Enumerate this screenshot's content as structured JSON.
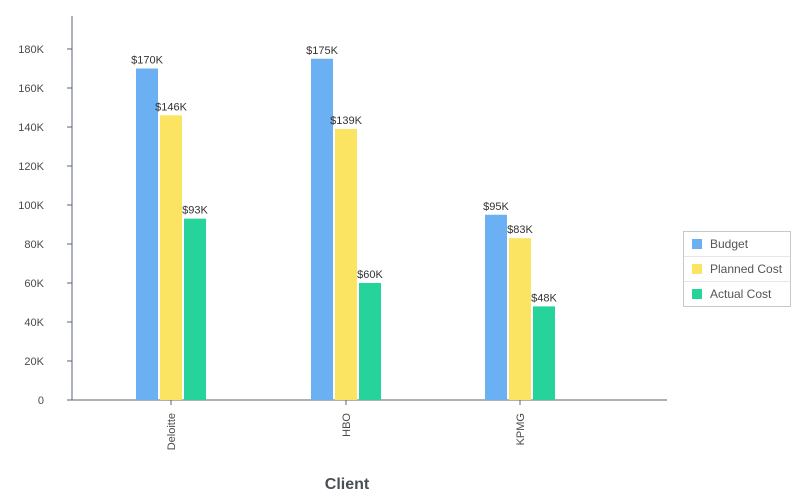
{
  "chart_data": {
    "type": "bar",
    "xlabel": "Client",
    "ylabel": "",
    "ylim": [
      0,
      180000
    ],
    "y_ticks": [
      {
        "value": 0,
        "label": "0"
      },
      {
        "value": 20000,
        "label": "20K"
      },
      {
        "value": 40000,
        "label": "40K"
      },
      {
        "value": 60000,
        "label": "60K"
      },
      {
        "value": 80000,
        "label": "80K"
      },
      {
        "value": 100000,
        "label": "100K"
      },
      {
        "value": 120000,
        "label": "120K"
      },
      {
        "value": 140000,
        "label": "140K"
      },
      {
        "value": 160000,
        "label": "160K"
      },
      {
        "value": 180000,
        "label": "180K"
      }
    ],
    "categories": [
      "Deloitte",
      "HBO",
      "KPMG"
    ],
    "series": [
      {
        "name": "Budget",
        "color": "#6ab0f3",
        "values": [
          170000,
          175000,
          95000
        ],
        "labels": [
          "$170K",
          "$175K",
          "$95K"
        ]
      },
      {
        "name": "Planned Cost",
        "color": "#fce463",
        "values": [
          146000,
          139000,
          83000
        ],
        "labels": [
          "$146K",
          "$139K",
          "$83K"
        ]
      },
      {
        "name": "Actual Cost",
        "color": "#25d39b",
        "values": [
          93000,
          60000,
          48000
        ],
        "labels": [
          "$93K",
          "$60K",
          "$48K"
        ]
      }
    ],
    "legend_position": "right",
    "grid": false
  }
}
